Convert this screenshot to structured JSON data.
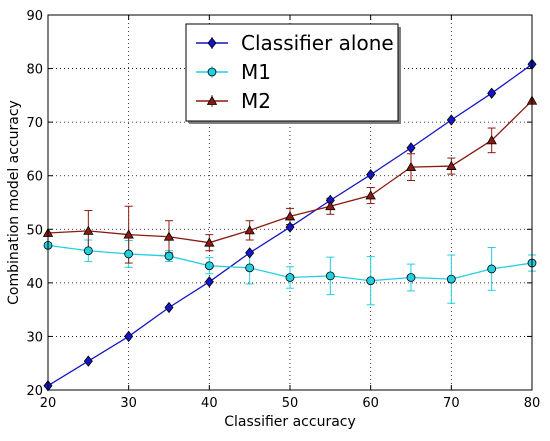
{
  "chart_data": {
    "type": "line",
    "title": "",
    "xlabel": "Classifier accuracy",
    "ylabel": "Combination model accuracy",
    "xlim": [
      20,
      80
    ],
    "ylim": [
      20,
      90
    ],
    "xticks": [
      20,
      30,
      40,
      50,
      60,
      70,
      80
    ],
    "yticks": [
      20,
      30,
      40,
      50,
      60,
      70,
      80,
      90
    ],
    "x": [
      20,
      25,
      30,
      35,
      40,
      45,
      50,
      55,
      60,
      65,
      70,
      75,
      80
    ],
    "grid": true,
    "legend_position": "top-center",
    "series": [
      {
        "name": "Classifier alone",
        "color": "#1515c8",
        "marker": "diamond",
        "values": [
          20.8,
          25.4,
          30.0,
          35.4,
          40.2,
          45.6,
          50.4,
          55.4,
          60.2,
          65.2,
          70.4,
          75.4,
          80.8
        ],
        "errors": []
      },
      {
        "name": "M1",
        "color": "#22cfe0",
        "marker": "circle",
        "values": [
          47.0,
          46.0,
          45.4,
          45.0,
          43.2,
          42.8,
          41.0,
          41.3,
          40.4,
          41.0,
          40.7,
          42.6,
          43.7
        ],
        "errors": [
          0,
          2.0,
          2.5,
          1.0,
          1.5,
          3.0,
          2.0,
          3.5,
          4.5,
          2.5,
          4.5,
          4.0,
          1.5
        ]
      },
      {
        "name": "M2",
        "color": "#8b1a10",
        "marker": "triangle",
        "values": [
          49.3,
          49.7,
          49.0,
          48.6,
          47.5,
          49.8,
          52.4,
          54.3,
          56.3,
          61.6,
          61.8,
          66.6,
          74.0
        ],
        "errors": [
          0,
          3.8,
          5.3,
          3.0,
          1.5,
          1.8,
          1.5,
          1.5,
          1.5,
          2.5,
          1.5,
          2.3,
          0
        ]
      }
    ]
  }
}
